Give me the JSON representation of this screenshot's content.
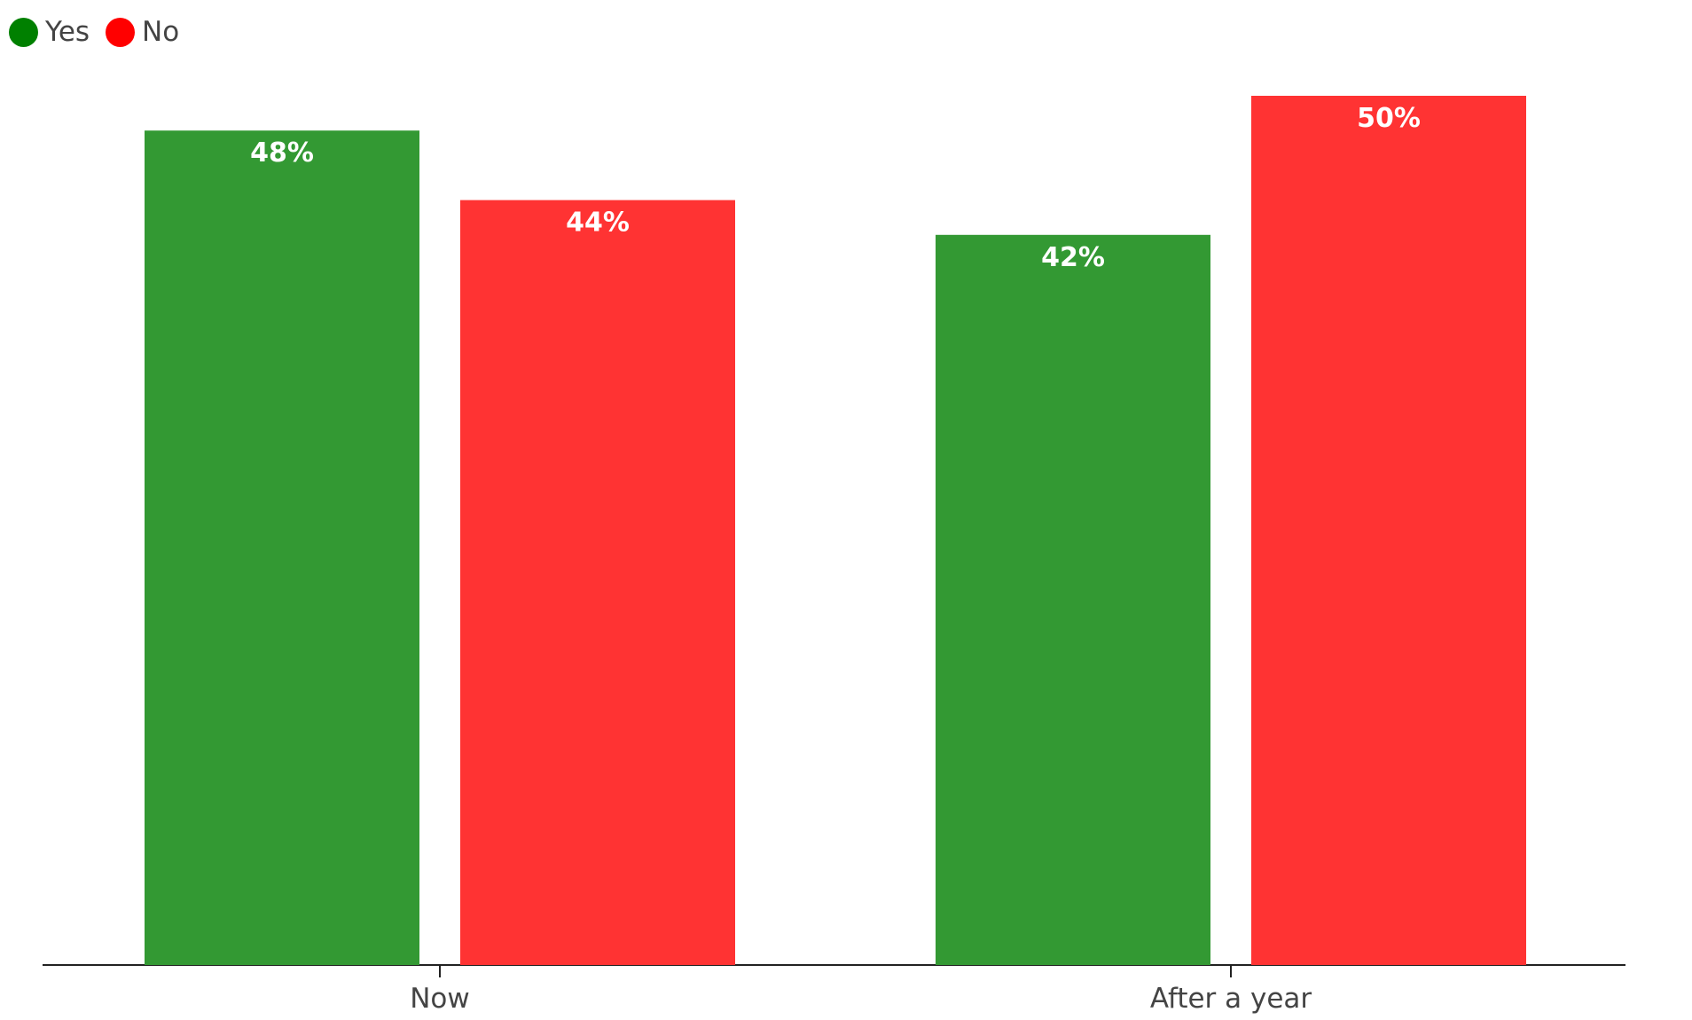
{
  "chart_data": {
    "type": "bar",
    "categories": [
      "Now",
      "After a year"
    ],
    "series": [
      {
        "name": "Yes",
        "color": "#339933",
        "values": [
          48,
          42
        ],
        "labels": [
          "48%",
          "42%"
        ]
      },
      {
        "name": "No",
        "color": "#ff3333",
        "values": [
          44,
          50
        ],
        "labels": [
          "44%",
          "50%"
        ]
      }
    ],
    "legend": {
      "position": "top-left",
      "items": [
        {
          "label": "Yes",
          "color": "#008000"
        },
        {
          "label": "No",
          "color": "#ff0000"
        }
      ]
    },
    "ylim": [
      0,
      50
    ],
    "grid": false,
    "title": "",
    "xlabel": "",
    "ylabel": ""
  }
}
